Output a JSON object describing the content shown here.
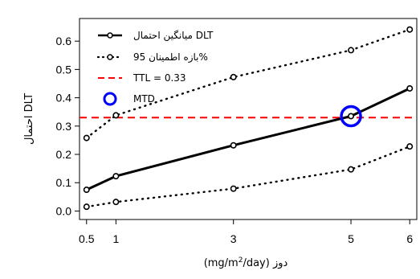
{
  "chart_data": {
    "type": "line",
    "ylabel": "احتمال DLT",
    "xlabel_parts": {
      "prefix": "(mg/m",
      "sup": "2",
      "suffix": "/day) دوز"
    },
    "x_ticks": [
      0.5,
      1,
      3,
      5,
      6
    ],
    "x_tick_labels": [
      "0.5",
      "1",
      "3",
      "5",
      "6"
    ],
    "y_ticks": [
      0.0,
      0.1,
      0.2,
      0.3,
      0.4,
      0.5,
      0.6
    ],
    "y_tick_labels": [
      "0.0",
      "0.1",
      "0.2",
      "0.3",
      "0.4",
      "0.5",
      "0.6"
    ],
    "xlim": [
      0.38,
      6.12
    ],
    "ylim": [
      -0.03,
      0.68
    ],
    "grid": false,
    "legend_position": "top-left",
    "series": [
      {
        "key": "mean",
        "name": "میانگین احتمال DLT",
        "style": "solid",
        "color": "#000000",
        "x": [
          0.5,
          1,
          3,
          5,
          6
        ],
        "y": [
          0.075,
          0.123,
          0.232,
          0.335,
          0.433
        ]
      },
      {
        "key": "upper",
        "name": "بازه اطمینان 95%",
        "style": "dotted",
        "color": "#000000",
        "x": [
          0.5,
          1,
          3,
          5,
          6
        ],
        "y": [
          0.258,
          0.338,
          0.473,
          0.568,
          0.641
        ]
      },
      {
        "key": "lower",
        "name": "بازه اطمینان 95%",
        "style": "dotted",
        "color": "#000000",
        "x": [
          0.5,
          1,
          3,
          5,
          6
        ],
        "y": [
          0.015,
          0.032,
          0.079,
          0.147,
          0.228
        ]
      }
    ],
    "reference_line": {
      "name": "TTL = 0.33",
      "y": 0.33,
      "color": "#ff0000",
      "style": "dashed"
    },
    "mtd_marker": {
      "name": "MTD",
      "x": 5,
      "y": 0.335,
      "color": "#0000ff"
    },
    "legend": [
      {
        "label": "میانگین احتمال DLT",
        "kind": "solid"
      },
      {
        "label": "بازه اطمینان 95%",
        "kind": "dotted"
      },
      {
        "label": "TTL = 0.33",
        "kind": "dashed"
      },
      {
        "label": "MTD",
        "kind": "circle"
      }
    ]
  }
}
